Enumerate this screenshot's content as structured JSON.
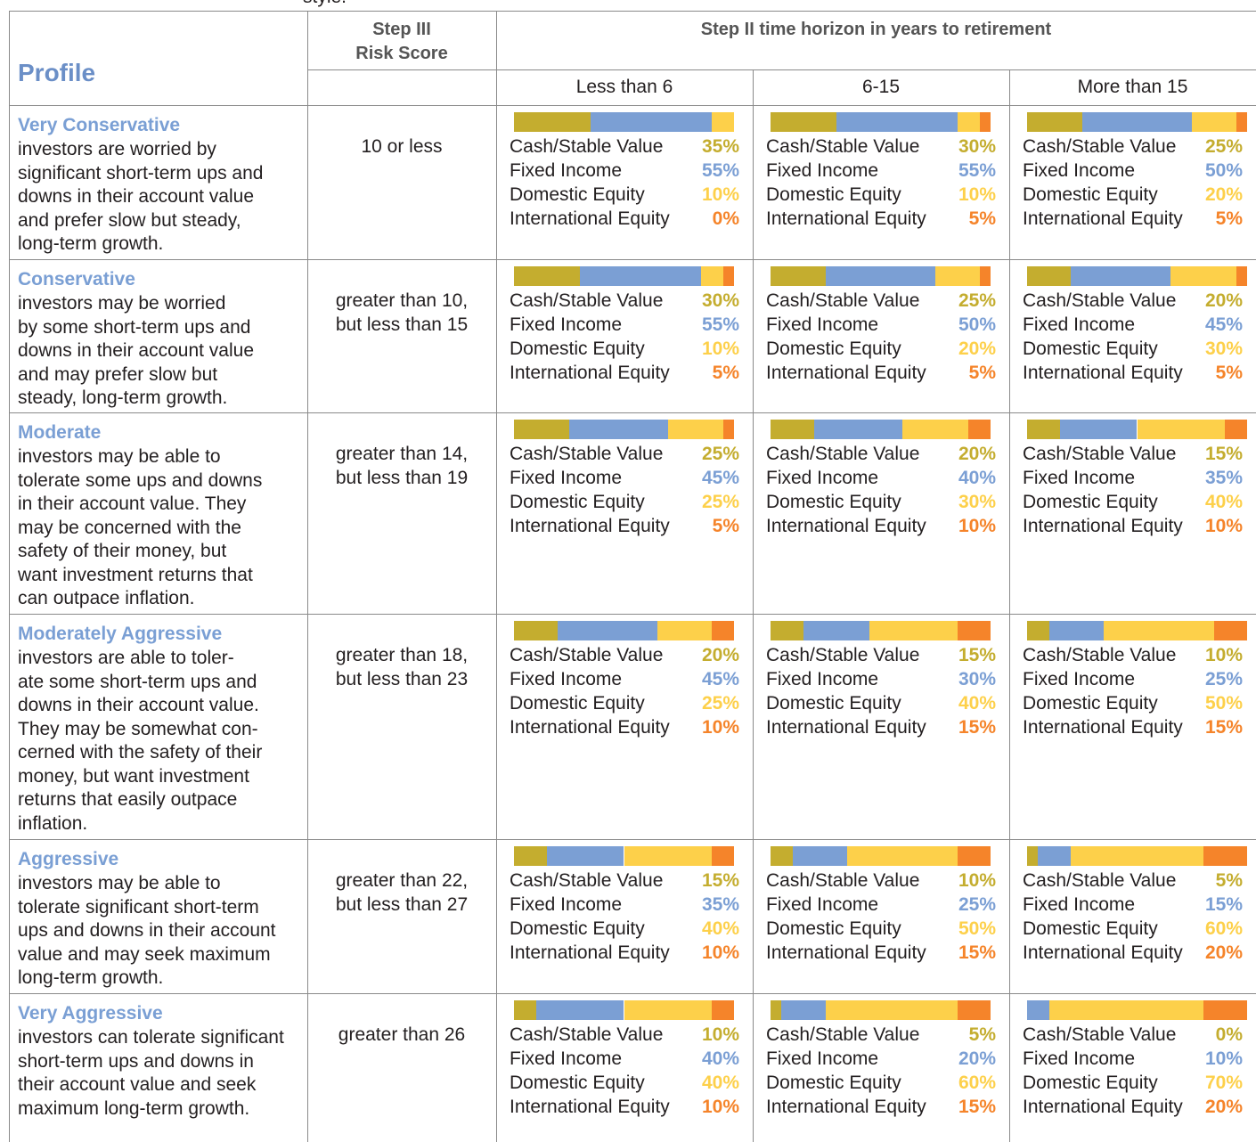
{
  "fragment": "style.",
  "header": {
    "profile": "Profile",
    "risk_score": [
      "Step III",
      "Risk Score"
    ],
    "time_horizon": "Step II time horizon in years to retirement",
    "horizons": [
      "Less than 6",
      "6-15",
      "More than 15"
    ]
  },
  "asset_classes": [
    {
      "name": "Cash/Stable Value",
      "color": "#c4ad2f"
    },
    {
      "name": "Fixed Income",
      "color": "#7b9fd4"
    },
    {
      "name": "Domestic Equity",
      "color": "#fdd04a"
    },
    {
      "name": "International Equity",
      "color": "#f5842a"
    }
  ],
  "rows": [
    {
      "name": "Very Conservative",
      "description": [
        "investors are worried by",
        "significant short-term ups and",
        "downs in their account value",
        "and prefer slow but steady,",
        "long-term growth."
      ],
      "risk_score": [
        "10 or less"
      ],
      "allocations": [
        {
          "values": [
            35,
            55,
            10,
            0
          ],
          "labels": [
            "35%",
            "55%",
            "10%",
            "0%"
          ]
        },
        {
          "values": [
            30,
            55,
            10,
            5
          ],
          "labels": [
            "30%",
            "55%",
            "10%",
            "5%"
          ]
        },
        {
          "values": [
            25,
            50,
            20,
            5
          ],
          "labels": [
            "25%",
            "50%",
            "20%",
            "5%"
          ]
        }
      ]
    },
    {
      "name": "Conservative",
      "description": [
        "investors may be worried",
        "by some short-term ups and",
        "downs in their account value",
        "and may prefer slow but",
        "steady, long-term growth."
      ],
      "risk_score": [
        "greater than 10,",
        "but less than 15"
      ],
      "allocations": [
        {
          "values": [
            30,
            55,
            10,
            5
          ],
          "labels": [
            "30%",
            "55%",
            "10%",
            "5%"
          ]
        },
        {
          "values": [
            25,
            50,
            20,
            5
          ],
          "labels": [
            "25%",
            "50%",
            "20%",
            "5%"
          ]
        },
        {
          "values": [
            20,
            45,
            30,
            5
          ],
          "labels": [
            "20%",
            "45%",
            "30%",
            "5%"
          ]
        }
      ]
    },
    {
      "name": "Moderate",
      "description": [
        "investors may be able to",
        "tolerate some ups and downs",
        "in their account value. They",
        "may be concerned with the",
        "safety of their money, but",
        "want investment returns that",
        "can outpace inflation."
      ],
      "risk_score": [
        "greater than 14,",
        "but less than 19"
      ],
      "allocations": [
        {
          "values": [
            25,
            45,
            25,
            5
          ],
          "labels": [
            "25%",
            "45%",
            "25%",
            "5%"
          ]
        },
        {
          "values": [
            20,
            40,
            30,
            10
          ],
          "labels": [
            "20%",
            "40%",
            "30%",
            "10%"
          ]
        },
        {
          "values": [
            15,
            35,
            40,
            10
          ],
          "labels": [
            "15%",
            "35%",
            "40%",
            "10%"
          ]
        }
      ]
    },
    {
      "name": "Moderately Aggressive",
      "description": [
        "investors are able to toler-",
        "ate some short-term ups and",
        "downs in their account value.",
        "They may be somewhat con-",
        "cerned with the safety of their",
        "money, but want investment",
        "returns that easily outpace",
        "inflation."
      ],
      "risk_score": [
        "greater than 18,",
        "but less than 23"
      ],
      "allocations": [
        {
          "values": [
            20,
            45,
            25,
            10
          ],
          "labels": [
            "20%",
            "45%",
            "25%",
            "10%"
          ]
        },
        {
          "values": [
            15,
            30,
            40,
            15
          ],
          "labels": [
            "15%",
            "30%",
            "40%",
            "15%"
          ]
        },
        {
          "values": [
            10,
            25,
            50,
            15
          ],
          "labels": [
            "10%",
            "25%",
            "50%",
            "15%"
          ]
        }
      ]
    },
    {
      "name": "Aggressive",
      "description": [
        "investors may be able to",
        "tolerate significant short-term",
        "ups and downs in their account",
        "value and may seek maximum",
        "long-term growth."
      ],
      "risk_score": [
        "greater than 22,",
        "but less than 27"
      ],
      "allocations": [
        {
          "values": [
            15,
            35,
            40,
            10
          ],
          "labels": [
            "15%",
            "35%",
            "40%",
            "10%"
          ]
        },
        {
          "values": [
            10,
            25,
            50,
            15
          ],
          "labels": [
            "10%",
            "25%",
            "50%",
            "15%"
          ]
        },
        {
          "values": [
            5,
            15,
            60,
            20
          ],
          "labels": [
            "5%",
            "15%",
            "60%",
            "20%"
          ]
        }
      ]
    },
    {
      "name": "Very Aggressive",
      "description": [
        "investors can tolerate significant",
        "short-term ups and downs in",
        "their account value and seek",
        "maximum long-term growth."
      ],
      "risk_score": [
        "greater than 26"
      ],
      "allocations": [
        {
          "values": [
            10,
            40,
            40,
            10
          ],
          "labels": [
            "10%",
            "40%",
            "40%",
            "10%"
          ]
        },
        {
          "values": [
            5,
            20,
            60,
            15
          ],
          "labels": [
            "5%",
            "20%",
            "60%",
            "15%"
          ]
        },
        {
          "values": [
            0,
            10,
            70,
            20
          ],
          "labels": [
            "0%",
            "10%",
            "70%",
            "20%"
          ]
        }
      ]
    }
  ]
}
